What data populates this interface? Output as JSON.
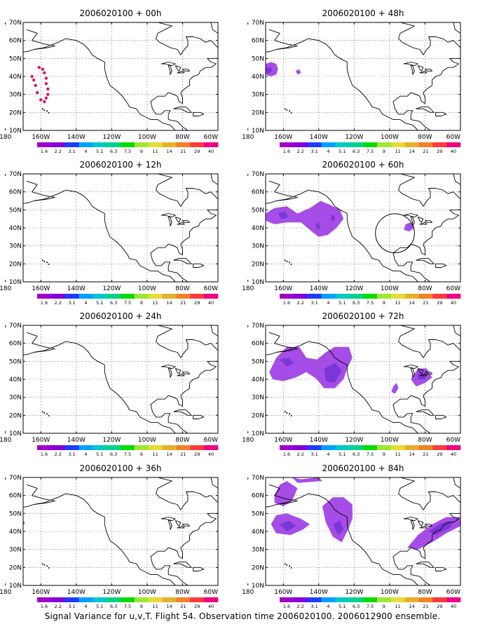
{
  "figure_caption": "Signal Variance for u,v,T. Flight 54. Observation time 2006020100. 2006012900 ensemble.",
  "colors": {
    "palette": [
      "#a000c8",
      "#8200dc",
      "#1e3cff",
      "#00a0ff",
      "#00c8c8",
      "#00d28c",
      "#00dc00",
      "#a0e632",
      "#e6dc32",
      "#e6af2d",
      "#f08228",
      "#fa3c3c",
      "#f00082"
    ],
    "shade_light": "#a64ce8",
    "shade_dark": "#7a36d9",
    "track": "#e0106a",
    "coast": "#000000",
    "grid": "#666666"
  },
  "chart_data": [
    {
      "type": "heatmap",
      "title": "2006020100 + 00h",
      "lead": "00h",
      "x_ticks": [
        "180",
        "160W",
        "140W",
        "120W",
        "100W",
        "80W",
        "60W"
      ],
      "y_ticks": [
        "70N",
        "60N",
        "50N",
        "40N",
        "30N",
        "20N",
        "10N"
      ],
      "xlim": [
        -170,
        -60
      ],
      "ylim": [
        10,
        70
      ],
      "grid": true,
      "colorbar": [
        "1.6",
        "2.2",
        "3.1",
        "4",
        "5.1",
        "6.3",
        "7.5",
        "9",
        "11",
        "14",
        "21",
        "29",
        "40"
      ],
      "features": [
        {
          "kind": "track",
          "points": [
            [
              -161,
              45
            ],
            [
              -159,
              44
            ],
            [
              -158,
              42
            ],
            [
              -157,
              39
            ],
            [
              -157,
              36
            ],
            [
              -156,
              33
            ],
            [
              -156,
              30
            ],
            [
              -157,
              28
            ],
            [
              -158,
              26
            ],
            [
              -160,
              27
            ],
            [
              -162,
              31
            ],
            [
              -163,
              35
            ],
            [
              -164,
              38
            ],
            [
              -165,
              40
            ]
          ]
        }
      ]
    },
    {
      "type": "heatmap",
      "title": "2006020100 + 48h",
      "lead": "48h",
      "x_ticks": [
        "180",
        "160W",
        "140W",
        "120W",
        "100W",
        "80W",
        "60W"
      ],
      "y_ticks": [
        "70N",
        "60N",
        "50N",
        "40N",
        "30N",
        "20N",
        "10N"
      ],
      "xlim": [
        -170,
        -60
      ],
      "ylim": [
        10,
        70
      ],
      "grid": true,
      "colorbar": [
        "1.6",
        "2.2",
        "3.1",
        "4",
        "5.1",
        "6.3",
        "7.5",
        "9",
        "11",
        "14",
        "21",
        "29",
        "40"
      ],
      "features": [
        {
          "kind": "blob",
          "level": "light",
          "points": [
            [
              -170,
              47
            ],
            [
              -167,
              48
            ],
            [
              -164,
              47
            ],
            [
              -163,
              44
            ],
            [
              -164,
              41
            ],
            [
              -167,
              40
            ],
            [
              -170,
              41
            ]
          ]
        },
        {
          "kind": "blob",
          "level": "dark",
          "points": [
            [
              -170,
              45
            ],
            [
              -167,
              45
            ],
            [
              -166,
              43
            ],
            [
              -168,
              42
            ],
            [
              -170,
              42
            ]
          ]
        },
        {
          "kind": "blob",
          "level": "light",
          "points": [
            [
              -151,
              44
            ],
            [
              -150,
              42
            ],
            [
              -152,
              41
            ],
            [
              -153,
              43
            ]
          ]
        }
      ]
    },
    {
      "type": "heatmap",
      "title": "2006020100 + 12h",
      "lead": "12h",
      "x_ticks": [
        "180",
        "160W",
        "140W",
        "120W",
        "100W",
        "80W",
        "60W"
      ],
      "y_ticks": [
        "70N",
        "60N",
        "50N",
        "40N",
        "30N",
        "20N",
        "10N"
      ],
      "xlim": [
        -170,
        -60
      ],
      "ylim": [
        10,
        70
      ],
      "grid": true,
      "colorbar": [
        "1.6",
        "2.2",
        "3.1",
        "4",
        "5.1",
        "6.3",
        "7.5",
        "9",
        "11",
        "14",
        "21",
        "29",
        "40"
      ],
      "features": []
    },
    {
      "type": "heatmap",
      "title": "2006020100 + 60h",
      "lead": "60h",
      "x_ticks": [
        "180",
        "160W",
        "140W",
        "120W",
        "100W",
        "80W",
        "60W"
      ],
      "y_ticks": [
        "70N",
        "60N",
        "50N",
        "40N",
        "30N",
        "20N",
        "10N"
      ],
      "xlim": [
        -170,
        -60
      ],
      "ylim": [
        10,
        70
      ],
      "grid": true,
      "colorbar": [
        "1.6",
        "2.2",
        "3.1",
        "4",
        "5.1",
        "6.3",
        "7.5",
        "9",
        "11",
        "14",
        "21",
        "29",
        "40"
      ],
      "features": [
        {
          "kind": "blob",
          "level": "light",
          "points": [
            [
              -170,
              48
            ],
            [
              -165,
              51
            ],
            [
              -158,
              52
            ],
            [
              -152,
              48
            ],
            [
              -145,
              51
            ],
            [
              -139,
              55
            ],
            [
              -134,
              53
            ],
            [
              -128,
              50
            ],
            [
              -126,
              45
            ],
            [
              -130,
              40
            ],
            [
              -135,
              36
            ],
            [
              -140,
              35
            ],
            [
              -144,
              38
            ],
            [
              -150,
              43
            ],
            [
              -158,
              43
            ],
            [
              -165,
              42
            ],
            [
              -170,
              44
            ]
          ]
        },
        {
          "kind": "blob",
          "level": "dark",
          "points": [
            [
              -163,
              48
            ],
            [
              -159,
              49
            ],
            [
              -157,
              46
            ],
            [
              -161,
              45
            ]
          ]
        },
        {
          "kind": "blob",
          "level": "dark",
          "points": [
            [
              -142,
              42
            ],
            [
              -140,
              43
            ],
            [
              -139,
              40
            ],
            [
              -141,
              39
            ]
          ]
        },
        {
          "kind": "blob",
          "level": "dark",
          "points": [
            [
              -133,
              47
            ],
            [
              -131,
              47
            ],
            [
              -131,
              44
            ],
            [
              -133,
              44
            ]
          ]
        },
        {
          "kind": "blob",
          "level": "light",
          "points": [
            [
              -91,
              42
            ],
            [
              -88,
              43
            ],
            [
              -86,
              40
            ],
            [
              -89,
              38
            ],
            [
              -92,
              39
            ]
          ]
        },
        {
          "kind": "circle",
          "center": [
            -97,
            37
          ],
          "radius": 11
        }
      ]
    },
    {
      "type": "heatmap",
      "title": "2006020100 + 24h",
      "lead": "24h",
      "x_ticks": [
        "180",
        "160W",
        "140W",
        "120W",
        "100W",
        "80W",
        "60W"
      ],
      "y_ticks": [
        "70N",
        "60N",
        "50N",
        "40N",
        "30N",
        "20N",
        "10N"
      ],
      "xlim": [
        -170,
        -60
      ],
      "ylim": [
        10,
        70
      ],
      "grid": true,
      "colorbar": [
        "1.6",
        "2.2",
        "3.1",
        "4",
        "5.1",
        "6.3",
        "7.5",
        "9",
        "11",
        "14",
        "21",
        "29",
        "40"
      ],
      "features": []
    },
    {
      "type": "heatmap",
      "title": "2006020100 + 72h",
      "lead": "72h",
      "x_ticks": [
        "180",
        "160W",
        "140W",
        "120W",
        "100W",
        "80W",
        "60W"
      ],
      "y_ticks": [
        "70N",
        "60N",
        "50N",
        "40N",
        "30N",
        "20N",
        "10N"
      ],
      "xlim": [
        -170,
        -60
      ],
      "ylim": [
        10,
        70
      ],
      "grid": true,
      "colorbar": [
        "1.6",
        "2.2",
        "3.1",
        "4",
        "5.1",
        "6.3",
        "7.5",
        "9",
        "11",
        "14",
        "21",
        "29",
        "40"
      ],
      "features": [
        {
          "kind": "blob",
          "level": "light",
          "points": [
            [
              -168,
              44
            ],
            [
              -164,
              52
            ],
            [
              -158,
              58
            ],
            [
              -151,
              58
            ],
            [
              -147,
              52
            ],
            [
              -141,
              51
            ],
            [
              -136,
              55
            ],
            [
              -131,
              58
            ],
            [
              -123,
              58
            ],
            [
              -121,
              52
            ],
            [
              -124,
              46
            ],
            [
              -126,
              40
            ],
            [
              -131,
              35
            ],
            [
              -137,
              35
            ],
            [
              -141,
              40
            ],
            [
              -147,
              44
            ],
            [
              -153,
              41
            ],
            [
              -160,
              39
            ],
            [
              -166,
              40
            ]
          ]
        },
        {
          "kind": "blob",
          "level": "dark",
          "points": [
            [
              -162,
              51
            ],
            [
              -157,
              52
            ],
            [
              -154,
              49
            ],
            [
              -158,
              47
            ]
          ]
        },
        {
          "kind": "blob",
          "level": "dark",
          "points": [
            [
              -137,
              46
            ],
            [
              -131,
              49
            ],
            [
              -127,
              45
            ],
            [
              -131,
              38
            ],
            [
              -136,
              39
            ]
          ]
        },
        {
          "kind": "blob",
          "level": "light",
          "points": [
            [
              -98,
              36
            ],
            [
              -96,
              38
            ],
            [
              -95,
              35
            ],
            [
              -97,
              32
            ],
            [
              -99,
              33
            ]
          ]
        },
        {
          "kind": "blob",
          "level": "light",
          "points": [
            [
              -88,
              40
            ],
            [
              -84,
              46
            ],
            [
              -79,
              46
            ],
            [
              -76,
              41
            ],
            [
              -80,
              38
            ],
            [
              -85,
              36
            ]
          ]
        },
        {
          "kind": "blob",
          "level": "dark",
          "points": [
            [
              -84,
              43
            ],
            [
              -80,
              43
            ],
            [
              -80,
              40
            ],
            [
              -84,
              40
            ]
          ]
        }
      ]
    },
    {
      "type": "heatmap",
      "title": "2006020100 + 36h",
      "lead": "36h",
      "x_ticks": [
        "180",
        "160W",
        "140W",
        "120W",
        "100W",
        "80W",
        "60W"
      ],
      "y_ticks": [
        "70N",
        "60N",
        "50N",
        "40N",
        "30N",
        "20N",
        "10N"
      ],
      "xlim": [
        -170,
        -60
      ],
      "ylim": [
        10,
        70
      ],
      "grid": true,
      "colorbar": [
        "1.6",
        "2.2",
        "3.1",
        "4",
        "5.1",
        "6.3",
        "7.5",
        "9",
        "11",
        "14",
        "21",
        "29",
        "40"
      ],
      "features": [
        {
          "kind": "blob",
          "level": "light",
          "points": [
            [
              -170,
              46
            ],
            [
              -169,
              45
            ],
            [
              -170,
              43
            ]
          ]
        }
      ]
    },
    {
      "type": "heatmap",
      "title": "2006020100 + 84h",
      "lead": "84h",
      "x_ticks": [
        "180",
        "160W",
        "140W",
        "120W",
        "100W",
        "80W",
        "60W"
      ],
      "y_ticks": [
        "70N",
        "60N",
        "50N",
        "40N",
        "30N",
        "20N",
        "10N"
      ],
      "xlim": [
        -170,
        -60
      ],
      "ylim": [
        10,
        70
      ],
      "grid": true,
      "colorbar": [
        "1.6",
        "2.2",
        "3.1",
        "4",
        "5.1",
        "6.3",
        "7.5",
        "9",
        "11",
        "14",
        "21",
        "29",
        "40"
      ],
      "features": [
        {
          "kind": "blob",
          "level": "light",
          "points": [
            [
              -165,
              60
            ],
            [
              -162,
              66
            ],
            [
              -158,
              68
            ],
            [
              -152,
              64
            ],
            [
              -155,
              57
            ],
            [
              -160,
              54
            ],
            [
              -165,
              56
            ]
          ]
        },
        {
          "kind": "blob",
          "level": "light",
          "points": [
            [
              -155,
              70
            ],
            [
              -150,
              69
            ],
            [
              -140,
              70
            ],
            [
              -138,
              68
            ],
            [
              -152,
              67
            ]
          ]
        },
        {
          "kind": "blob",
          "level": "light",
          "points": [
            [
              -167,
              44
            ],
            [
              -164,
              49
            ],
            [
              -158,
              50
            ],
            [
              -150,
              47
            ],
            [
              -145,
              44
            ],
            [
              -149,
              41
            ],
            [
              -156,
              38
            ],
            [
              -164,
              39
            ]
          ]
        },
        {
          "kind": "blob",
          "level": "dark",
          "points": [
            [
              -162,
              44
            ],
            [
              -157,
              46
            ],
            [
              -153,
              43
            ],
            [
              -158,
              40
            ]
          ]
        },
        {
          "kind": "blob",
          "level": "light",
          "points": [
            [
              -138,
              54
            ],
            [
              -132,
              59
            ],
            [
              -126,
              59
            ],
            [
              -121,
              55
            ],
            [
              -121,
              47
            ],
            [
              -124,
              40
            ],
            [
              -127,
              34
            ],
            [
              -132,
              37
            ],
            [
              -136,
              45
            ]
          ]
        },
        {
          "kind": "blob",
          "level": "dark",
          "points": [
            [
              -132,
              44
            ],
            [
              -128,
              46
            ],
            [
              -126,
              41
            ],
            [
              -129,
              38
            ]
          ]
        },
        {
          "kind": "blob",
          "level": "light",
          "points": [
            [
              -90,
              31
            ],
            [
              -84,
              38
            ],
            [
              -76,
              44
            ],
            [
              -68,
              48
            ],
            [
              -60,
              48
            ],
            [
              -60,
              43
            ],
            [
              -68,
              39
            ],
            [
              -76,
              34
            ],
            [
              -84,
              30
            ]
          ]
        },
        {
          "kind": "blob",
          "level": "dark",
          "points": [
            [
              -78,
              40
            ],
            [
              -70,
              45
            ],
            [
              -64,
              46
            ],
            [
              -66,
              42
            ],
            [
              -74,
              38
            ]
          ]
        }
      ]
    }
  ]
}
